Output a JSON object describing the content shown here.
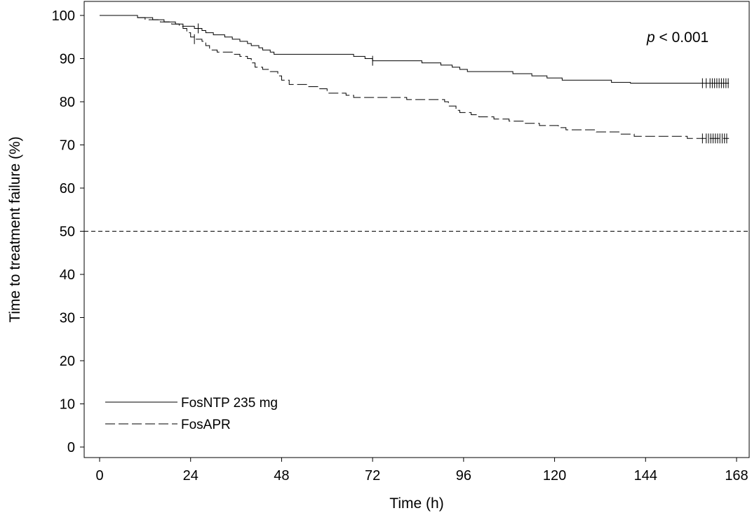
{
  "chart_data": {
    "type": "line",
    "subtype": "kaplan-meier",
    "xlabel": "Time (h)",
    "ylabel": "Time to treatment failure (%)",
    "xlim": [
      0,
      168
    ],
    "ylim": [
      0,
      100
    ],
    "xticks": [
      0,
      24,
      48,
      72,
      96,
      120,
      144,
      168
    ],
    "yticks": [
      0,
      10,
      20,
      30,
      40,
      50,
      60,
      70,
      80,
      90,
      100
    ],
    "reference_line": {
      "y": 50,
      "style": "dashed"
    },
    "annotation": {
      "italic": "p",
      "text": " < 0.001"
    },
    "legend_position": "bottom-left",
    "series": [
      {
        "name": "FosNTP 235 mg",
        "style": "solid",
        "points": [
          [
            0,
            100
          ],
          [
            9,
            100
          ],
          [
            10,
            99.5
          ],
          [
            14,
            99
          ],
          [
            17,
            98.5
          ],
          [
            20,
            98
          ],
          [
            22,
            97.5
          ],
          [
            25,
            97
          ],
          [
            27,
            96.5
          ],
          [
            28,
            96
          ],
          [
            30,
            95.5
          ],
          [
            33,
            95
          ],
          [
            35,
            94.5
          ],
          [
            37,
            94
          ],
          [
            39,
            93.5
          ],
          [
            40,
            93
          ],
          [
            42,
            92.5
          ],
          [
            43,
            92
          ],
          [
            45,
            91.5
          ],
          [
            46,
            91
          ],
          [
            66,
            91
          ],
          [
            67,
            90.5
          ],
          [
            70,
            90
          ],
          [
            72,
            89.5
          ],
          [
            85,
            89
          ],
          [
            90,
            88.5
          ],
          [
            93,
            88
          ],
          [
            95,
            87.5
          ],
          [
            97,
            87
          ],
          [
            109,
            86.5
          ],
          [
            114,
            86
          ],
          [
            118,
            85.5
          ],
          [
            122,
            85
          ],
          [
            135,
            84.5
          ],
          [
            140,
            84.3
          ],
          [
            166,
            84.3
          ]
        ],
        "censor_x": [
          26,
          72,
          159,
          160,
          161,
          161.6,
          162.2,
          162.8,
          163.4,
          164,
          164.6,
          165.2,
          165.8
        ]
      },
      {
        "name": "FosAPR",
        "style": "dashed",
        "points": [
          [
            0,
            100
          ],
          [
            9,
            100
          ],
          [
            10,
            99.5
          ],
          [
            12,
            99
          ],
          [
            16,
            98.5
          ],
          [
            19,
            98
          ],
          [
            21,
            97.5
          ],
          [
            22,
            97
          ],
          [
            23,
            96
          ],
          [
            24,
            95
          ],
          [
            25,
            94.5
          ],
          [
            27,
            94
          ],
          [
            28,
            93
          ],
          [
            29,
            92
          ],
          [
            31,
            91.5
          ],
          [
            35,
            91
          ],
          [
            37,
            90.5
          ],
          [
            39,
            90
          ],
          [
            40,
            89
          ],
          [
            41,
            88
          ],
          [
            43,
            87.5
          ],
          [
            45,
            87
          ],
          [
            47,
            86
          ],
          [
            48,
            85
          ],
          [
            50,
            84
          ],
          [
            55,
            83.5
          ],
          [
            58,
            83
          ],
          [
            60,
            82
          ],
          [
            65,
            81.5
          ],
          [
            67,
            81
          ],
          [
            80,
            81
          ],
          [
            81,
            80.5
          ],
          [
            90,
            80.5
          ],
          [
            91,
            80
          ],
          [
            92,
            79
          ],
          [
            94,
            78
          ],
          [
            95,
            77.5
          ],
          [
            98,
            77
          ],
          [
            100,
            76.5
          ],
          [
            104,
            76
          ],
          [
            108,
            75.5
          ],
          [
            112,
            75
          ],
          [
            116,
            74.5
          ],
          [
            121,
            74
          ],
          [
            123,
            73.5
          ],
          [
            131,
            73
          ],
          [
            137,
            72.5
          ],
          [
            141,
            72
          ],
          [
            155,
            71.5
          ],
          [
            166,
            71.5
          ]
        ],
        "censor_x": [
          25,
          159,
          160,
          160.6,
          161.2,
          161.8,
          162.4,
          163,
          163.6,
          164.2,
          164.8,
          165.4
        ]
      }
    ]
  }
}
